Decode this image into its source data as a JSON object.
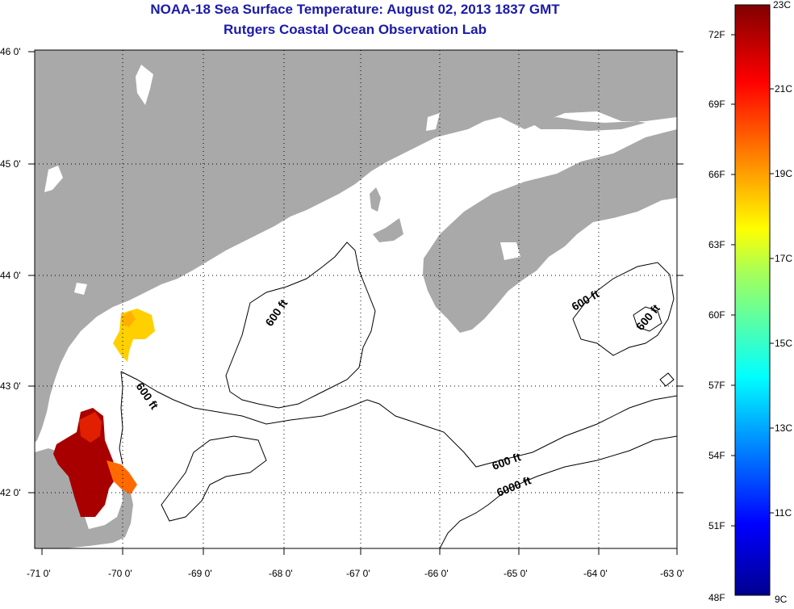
{
  "title_line1": "NOAA-18 Sea Surface Temperature:  August 02, 2013 1837 GMT",
  "title_line2": "Rutgers Coastal Ocean Observation Lab",
  "lat_labels": [
    "46 0'",
    "45 0'",
    "44 0'",
    "43 0'",
    "42 0'"
  ],
  "lon_labels": [
    "-71 0'",
    "-70 0'",
    "-69 0'",
    "-68 0'",
    "-67 0'",
    "-66 0'",
    "-65 0'",
    "-64 0'",
    "-63 0'"
  ],
  "contour_labels": [
    "600 ft",
    "600 ft",
    "600 ft",
    "600 ft",
    "600 ft",
    "6000 ft"
  ],
  "colorbar": {
    "fahrenheit": [
      "72F",
      "69F",
      "66F",
      "63F",
      "60F",
      "57F",
      "54F",
      "51F",
      "48F"
    ],
    "celsius": [
      "23C",
      "21C",
      "19C",
      "17C",
      "15C",
      "13C",
      "11C",
      "9C"
    ]
  },
  "colors": {
    "title": "#1a1aa8",
    "land": "#a9a9a9",
    "sst_warm": "#a80000",
    "sst_mid": "#ff6a00",
    "sst_cool": "#ffd000"
  }
}
